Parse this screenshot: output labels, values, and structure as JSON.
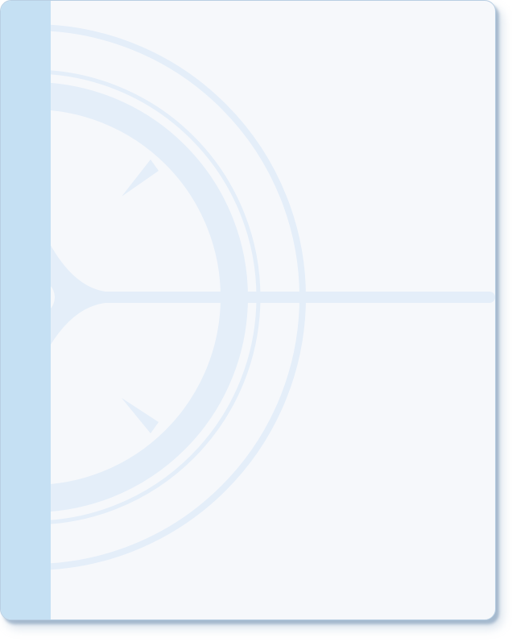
{
  "card": {
    "accent_color": "#c5e0f3",
    "background_color": "#f6f8fb",
    "watermark_color": "#e6f0fb",
    "watermark_icon": "compass-icon"
  }
}
